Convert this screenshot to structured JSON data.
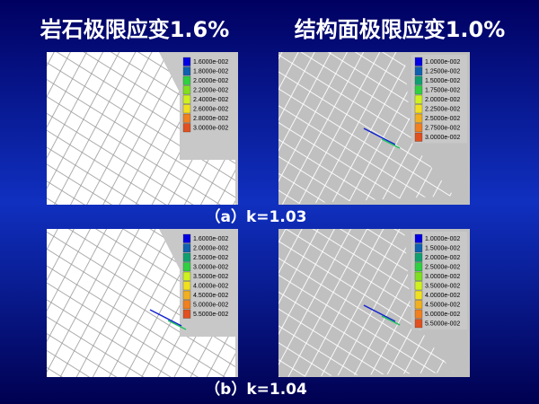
{
  "header": {
    "left": "岩石极限应变1.6%",
    "right": "结构面极限应变1.0%"
  },
  "rows": [
    {
      "caption": "（a）k=1.03",
      "panels": [
        {
          "legend": [
            "1.6000e-002",
            "1.8000e-002",
            "2.0000e-002",
            "2.2000e-002",
            "2.4000e-002",
            "2.6000e-002",
            "2.8000e-002",
            "3.0000e-002"
          ]
        },
        {
          "legend": [
            "1.0000e-002",
            "1.2500e-002",
            "1.5000e-002",
            "1.7500e-002",
            "2.0000e-002",
            "2.2500e-002",
            "2.5000e-002",
            "2.7500e-002",
            "3.0000e-002"
          ]
        }
      ]
    },
    {
      "caption": "（b）k=1.04",
      "panels": [
        {
          "legend": [
            "1.6000e-002",
            "2.0000e-002",
            "2.5000e-002",
            "3.0000e-002",
            "3.5000e-002",
            "4.0000e-002",
            "4.5000e-002",
            "5.0000e-002",
            "5.5000e-002"
          ]
        },
        {
          "legend": [
            "1.0000e-002",
            "1.5000e-002",
            "2.0000e-002",
            "2.5000e-002",
            "3.0000e-002",
            "3.5000e-002",
            "4.0000e-002",
            "4.5000e-002",
            "5.0000e-002",
            "5.5000e-002"
          ]
        }
      ]
    }
  ]
}
